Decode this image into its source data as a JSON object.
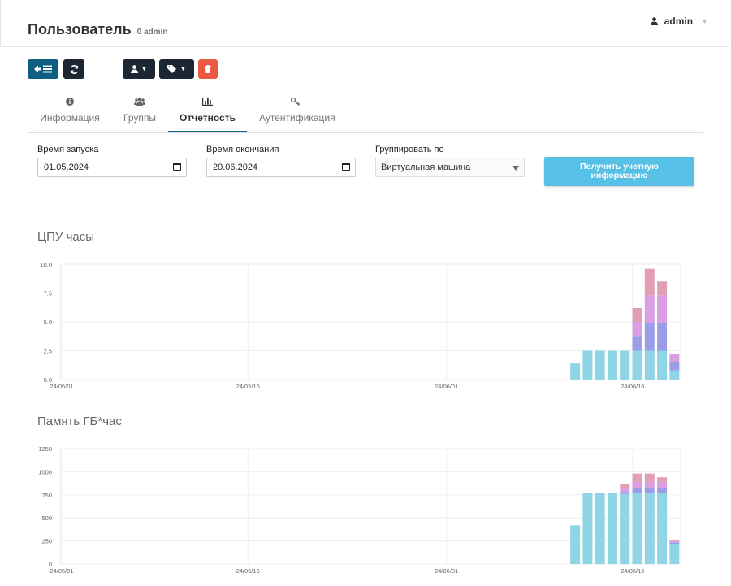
{
  "header": {
    "title": "Пользователь",
    "subtitle": "0 admin",
    "user": "admin"
  },
  "toolbar": {
    "back_icon": "arrow-left-list-icon",
    "refresh_icon": "refresh-icon",
    "user_icon": "user-icon",
    "tag_icon": "tag-icon",
    "delete_icon": "trash-icon",
    "colors": {
      "primary": "#0d5e81",
      "dark": "#1c2733",
      "danger": "#ec5840"
    }
  },
  "tabs": [
    {
      "label": "Информация",
      "icon": "info-icon",
      "active": false
    },
    {
      "label": "Группы",
      "icon": "users-icon",
      "active": false
    },
    {
      "label": "Отчетность",
      "icon": "bar-chart-icon",
      "active": true
    },
    {
      "label": "Аутентификация",
      "icon": "key-icon",
      "active": false
    }
  ],
  "form": {
    "start_label": "Время запуска",
    "start_value": "01.05.2024",
    "end_label": "Время окончания",
    "end_value": "20.06.2024",
    "group_label": "Группировать по",
    "group_value": "Виртуальная машина",
    "submit_label": "Получить учетную информацию",
    "submit_color": "#56c0e6"
  },
  "charts": {
    "cpu_title": "ЦПУ часы",
    "mem_title": "Память ГБ*час"
  },
  "chart_data": [
    {
      "type": "bar",
      "title": "ЦПУ часы",
      "stacked": true,
      "ylim": [
        0,
        10
      ],
      "yticks": [
        "0.0",
        "2.5",
        "5.0",
        "7.5",
        "10.0"
      ],
      "xlim": [
        "2024-05-01",
        "2024-06-20"
      ],
      "xticks": [
        "24/05/01",
        "24/05/16",
        "24/06/01",
        "24/06/16"
      ],
      "dates": [
        "2024-06-11",
        "2024-06-12",
        "2024-06-13",
        "2024-06-14",
        "2024-06-15",
        "2024-06-16",
        "2024-06-17",
        "2024-06-18",
        "2024-06-19"
      ],
      "series": [
        {
          "color": "#8fd5e6",
          "values": [
            1.4,
            2.5,
            2.5,
            2.5,
            2.5,
            2.5,
            2.5,
            2.5,
            0.8
          ]
        },
        {
          "color": "#9b9ee6",
          "values": [
            0,
            0,
            0,
            0,
            0,
            1.2,
            2.4,
            2.4,
            0.7
          ]
        },
        {
          "color": "#da9fe3",
          "values": [
            0,
            0,
            0,
            0,
            0,
            1.3,
            2.4,
            2.4,
            0.7
          ]
        },
        {
          "color": "#e29fb3",
          "values": [
            0,
            0,
            0,
            0,
            0,
            1.2,
            2.3,
            1.2,
            0
          ]
        }
      ],
      "grid": true
    },
    {
      "type": "bar",
      "title": "Память ГБ*час",
      "stacked": true,
      "ylim": [
        0,
        1250
      ],
      "yticks": [
        "0",
        "250",
        "500",
        "750",
        "1000",
        "1250"
      ],
      "xlim": [
        "2024-05-01",
        "2024-06-20"
      ],
      "xticks": [
        "24/05/01",
        "24/05/16",
        "24/06/01",
        "24/06/16"
      ],
      "dates": [
        "2024-06-11",
        "2024-06-12",
        "2024-06-13",
        "2024-06-14",
        "2024-06-15",
        "2024-06-16",
        "2024-06-17",
        "2024-06-18",
        "2024-06-19"
      ],
      "series": [
        {
          "color": "#8fd5e6",
          "values": [
            420,
            770,
            770,
            770,
            760,
            770,
            770,
            770,
            220
          ]
        },
        {
          "color": "#9b9ee6",
          "values": [
            0,
            0,
            0,
            0,
            20,
            50,
            50,
            50,
            15
          ]
        },
        {
          "color": "#da9fe3",
          "values": [
            0,
            0,
            0,
            0,
            40,
            70,
            70,
            70,
            15
          ]
        },
        {
          "color": "#e29fb3",
          "values": [
            0,
            0,
            0,
            0,
            50,
            90,
            90,
            50,
            10
          ]
        }
      ],
      "grid": true
    }
  ]
}
